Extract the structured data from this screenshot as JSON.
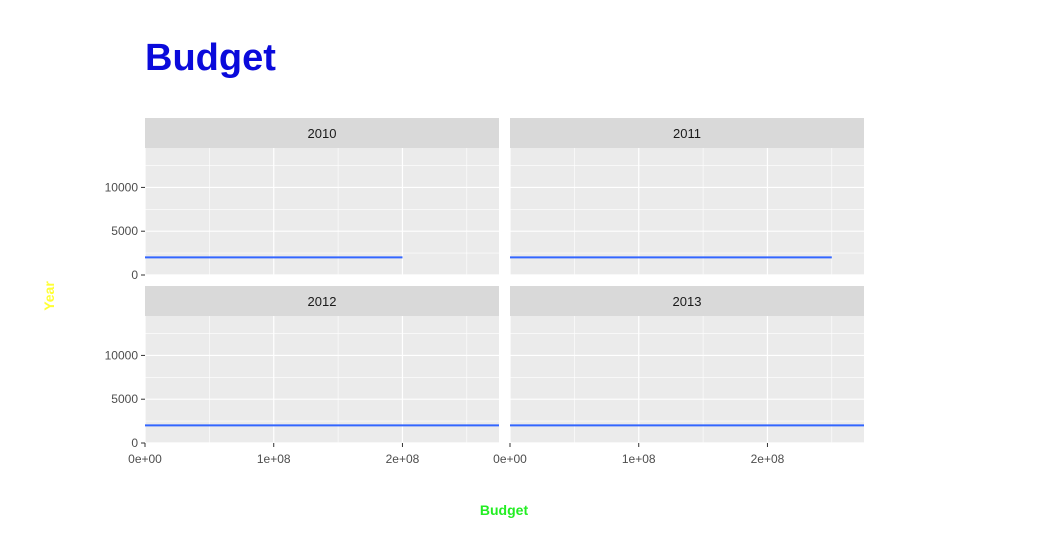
{
  "chart_data": {
    "type": "line",
    "title": "Budget",
    "xlabel": "Budget",
    "ylabel": "Year",
    "colors": {
      "title": "#0a0adb",
      "xlabel": "#22ee22",
      "ylabel": "#ffff33",
      "line": "#3366ff",
      "panel_bg": "#ebebeb",
      "strip_bg": "#d9d9d9",
      "grid": "#ffffff"
    },
    "xlim": [
      0,
      275000000
    ],
    "ylim": [
      0,
      14500
    ],
    "x_ticks": [
      {
        "value": 0,
        "label": "0e+00"
      },
      {
        "value": 100000000,
        "label": "1e+08"
      },
      {
        "value": 200000000,
        "label": "2e+08"
      }
    ],
    "y_ticks": [
      {
        "value": 0,
        "label": "0"
      },
      {
        "value": 5000,
        "label": "5000"
      },
      {
        "value": 10000,
        "label": "10000"
      }
    ],
    "facets": [
      {
        "label": "2010",
        "series": [
          {
            "x": [
              0,
              200000000
            ],
            "y": [
              2010,
              2010
            ]
          }
        ]
      },
      {
        "label": "2011",
        "series": [
          {
            "x": [
              0,
              250000000
            ],
            "y": [
              2011,
              2011
            ]
          }
        ]
      },
      {
        "label": "2012",
        "series": [
          {
            "x": [
              0,
              275000000
            ],
            "y": [
              2012,
              2012
            ]
          }
        ]
      },
      {
        "label": "2013",
        "series": [
          {
            "x": [
              0,
              275000000
            ],
            "y": [
              2013,
              2013
            ]
          }
        ]
      }
    ]
  }
}
